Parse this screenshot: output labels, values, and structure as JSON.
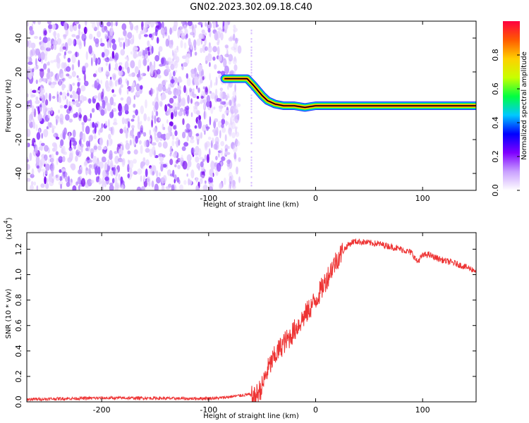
{
  "title": "GN02.2023.302.09.18.C40",
  "chart_data": [
    {
      "type": "heatmap",
      "name": "spectrogram",
      "xlabel": "Height of straight line (km)",
      "ylabel": "Frequency (Hz)",
      "xlim": [
        -270,
        150
      ],
      "ylim": [
        -50,
        50
      ],
      "x_ticks": [
        -200,
        -100,
        0,
        100
      ],
      "x_tick_labels": [
        "-200",
        "-100",
        "0",
        "100"
      ],
      "y_ticks": [
        -40,
        -20,
        0,
        20,
        40
      ],
      "y_tick_labels": [
        "-40",
        "-20",
        "0",
        "20",
        "40"
      ],
      "noise_region_x": [
        -270,
        -75
      ],
      "noise_stripe_x": -60,
      "ridge": {
        "x": [
          -85,
          -78,
          -64,
          -58,
          -50,
          -45,
          -38,
          -30,
          -20,
          -10,
          0,
          20,
          50,
          80,
          95,
          110,
          150
        ],
        "y": [
          16,
          16,
          16,
          12,
          6,
          3,
          1,
          0,
          0,
          -1,
          0,
          0,
          0,
          0,
          0,
          0,
          0
        ]
      },
      "colorbar": {
        "label": "Normalized spectral amplitude",
        "range": [
          0,
          1
        ],
        "ticks": [
          0.0,
          0.2,
          0.4,
          0.6,
          0.8
        ],
        "tick_labels": [
          "0.0",
          "0.2",
          "0.4",
          "0.6",
          "0.8"
        ],
        "colors": [
          "#ffffff",
          "#c9a0ff",
          "#7f00ff",
          "#0000ff",
          "#00c8ff",
          "#00ff40",
          "#c8ff00",
          "#ffd000",
          "#ff5a00",
          "#ff0040"
        ]
      }
    },
    {
      "type": "line",
      "name": "snr",
      "xlabel": "Height of straight line (km)",
      "ylabel": "SNR (10 * v/v)",
      "y_scale_label": "(x10",
      "y_scale_exponent": "4",
      "y_scale_suffix": ")",
      "xlim": [
        -270,
        150
      ],
      "ylim": [
        0.0,
        1.33
      ],
      "x_ticks": [
        -200,
        -100,
        0,
        100
      ],
      "x_tick_labels": [
        "-200",
        "-100",
        "0",
        "100"
      ],
      "y_ticks": [
        0.0,
        0.2,
        0.4,
        0.6,
        0.8,
        1.0,
        1.2
      ],
      "y_tick_labels": [
        "0.0",
        "0.2",
        "0.4",
        "0.6",
        "0.8",
        "1.0",
        "1.2"
      ],
      "color": "#ee3333",
      "x": [
        -270,
        -240,
        -200,
        -160,
        -120,
        -90,
        -70,
        -62,
        -58,
        -50,
        -45,
        -40,
        -35,
        -30,
        -25,
        -20,
        -15,
        -10,
        -5,
        0,
        5,
        10,
        15,
        20,
        25,
        30,
        35,
        40,
        50,
        60,
        70,
        80,
        90,
        95,
        100,
        105,
        110,
        120,
        130,
        140,
        150
      ],
      "y": [
        0.02,
        0.025,
        0.03,
        0.03,
        0.025,
        0.03,
        0.05,
        0.06,
        0.02,
        0.12,
        0.25,
        0.33,
        0.4,
        0.46,
        0.5,
        0.56,
        0.62,
        0.68,
        0.74,
        0.8,
        0.88,
        0.96,
        1.05,
        1.12,
        1.18,
        1.23,
        1.26,
        1.26,
        1.25,
        1.24,
        1.22,
        1.2,
        1.17,
        1.1,
        1.15,
        1.16,
        1.14,
        1.11,
        1.09,
        1.06,
        1.03
      ]
    }
  ]
}
